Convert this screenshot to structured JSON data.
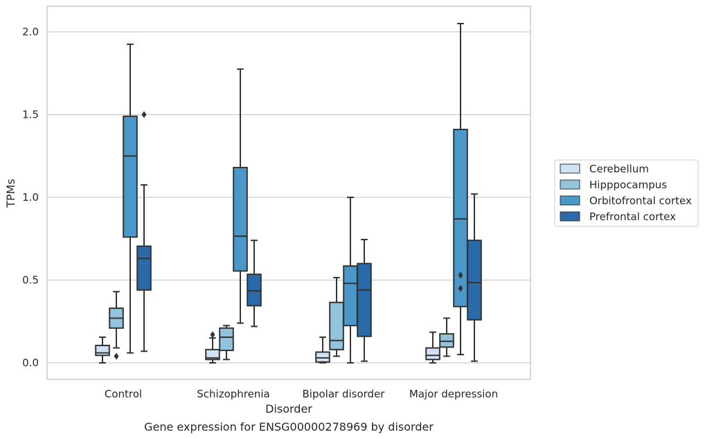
{
  "chart_data": {
    "type": "box",
    "caption": "Gene expression for ENSG00000278969 by disorder",
    "xlabel": "Disorder",
    "ylabel": "TPMs",
    "ylim": [
      -0.1,
      2.16
    ],
    "yticks": [
      0.0,
      0.5,
      1.0,
      1.5,
      2.0
    ],
    "ytick_labels": [
      "0.0",
      "0.5",
      "1.0",
      "1.5",
      "2.0"
    ],
    "grid": "horizontal",
    "legend_position": "right",
    "categories": [
      "Control",
      "Schizophrenia",
      "Bipolar disorder",
      "Major depression"
    ],
    "series": [
      {
        "name": "Cerebellum",
        "color": "#cfe1f2",
        "boxes": [
          {
            "whislo": 0.0,
            "q1": 0.045,
            "med": 0.06,
            "q3": 0.105,
            "whishi": 0.155,
            "fliers": []
          },
          {
            "whislo": 0.0,
            "q1": 0.02,
            "med": 0.03,
            "q3": 0.08,
            "whishi": 0.15,
            "fliers": [
              0.17
            ]
          },
          {
            "whislo": 0.0,
            "q1": 0.005,
            "med": 0.03,
            "q3": 0.065,
            "whishi": 0.155,
            "fliers": []
          },
          {
            "whislo": 0.0,
            "q1": 0.02,
            "med": 0.045,
            "q3": 0.09,
            "whishi": 0.185,
            "fliers": []
          }
        ]
      },
      {
        "name": "Hipppocampus",
        "color": "#93c4de",
        "boxes": [
          {
            "whislo": 0.09,
            "q1": 0.21,
            "med": 0.27,
            "q3": 0.33,
            "whishi": 0.43,
            "fliers": [
              0.04
            ]
          },
          {
            "whislo": 0.02,
            "q1": 0.075,
            "med": 0.155,
            "q3": 0.21,
            "whishi": 0.225,
            "fliers": []
          },
          {
            "whislo": 0.04,
            "q1": 0.08,
            "med": 0.135,
            "q3": 0.365,
            "whishi": 0.515,
            "fliers": []
          },
          {
            "whislo": 0.04,
            "q1": 0.095,
            "med": 0.13,
            "q3": 0.175,
            "whishi": 0.27,
            "fliers": []
          }
        ]
      },
      {
        "name": "Orbitofrontal cortex",
        "color": "#4a98c9",
        "boxes": [
          {
            "whislo": 0.06,
            "q1": 0.76,
            "med": 1.25,
            "q3": 1.49,
            "whishi": 1.925,
            "fliers": []
          },
          {
            "whislo": 0.24,
            "q1": 0.555,
            "med": 0.765,
            "q3": 1.18,
            "whishi": 1.775,
            "fliers": []
          },
          {
            "whislo": 0.0,
            "q1": 0.225,
            "med": 0.48,
            "q3": 0.585,
            "whishi": 1.0,
            "fliers": []
          },
          {
            "whislo": 0.05,
            "q1": 0.34,
            "med": 0.87,
            "q3": 1.41,
            "whishi": 2.05,
            "fliers": [
              0.53,
              0.45
            ]
          }
        ]
      },
      {
        "name": "Prefrontal cortex",
        "color": "#2b6aa9",
        "boxes": [
          {
            "whislo": 0.07,
            "q1": 0.44,
            "med": 0.63,
            "q3": 0.705,
            "whishi": 1.075,
            "fliers": [
              1.5
            ]
          },
          {
            "whislo": 0.22,
            "q1": 0.345,
            "med": 0.435,
            "q3": 0.535,
            "whishi": 0.74,
            "fliers": []
          },
          {
            "whislo": 0.01,
            "q1": 0.16,
            "med": 0.44,
            "q3": 0.6,
            "whishi": 0.745,
            "fliers": []
          },
          {
            "whislo": 0.01,
            "q1": 0.26,
            "med": 0.485,
            "q3": 0.74,
            "whishi": 1.02,
            "fliers": []
          }
        ]
      }
    ]
  }
}
